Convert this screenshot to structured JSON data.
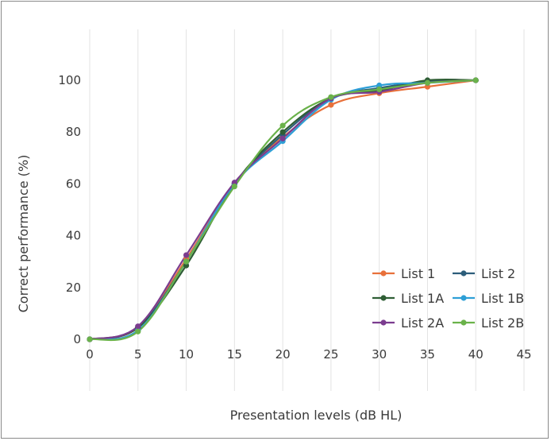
{
  "chart_data": {
    "type": "line",
    "title": "",
    "xlabel": "Presentation levels (dB HL)",
    "ylabel": "Correct performance (%)",
    "xlim": [
      0,
      45
    ],
    "ylim": [
      0,
      100
    ],
    "xticks": [
      0,
      5,
      10,
      15,
      20,
      25,
      30,
      35,
      40,
      45
    ],
    "yticks": [
      0,
      20,
      40,
      60,
      80,
      100
    ],
    "grid": "vertical",
    "legend_position": "bottom-right",
    "x": [
      0,
      5,
      10,
      15,
      20,
      25,
      30,
      35,
      40
    ],
    "series": [
      {
        "name": "List 1",
        "color": "#e8703a",
        "values": [
          0,
          4.5,
          31,
          60,
          78,
          90.5,
          95,
          97.5,
          100
        ]
      },
      {
        "name": "List 2",
        "color": "#2c5d7a",
        "values": [
          0,
          4.5,
          30,
          60,
          79,
          93,
          97,
          99.5,
          100
        ]
      },
      {
        "name": "List 1A",
        "color": "#2f5e35",
        "values": [
          0,
          4.5,
          28.5,
          60,
          80,
          93,
          96,
          100,
          100
        ]
      },
      {
        "name": "List 1B",
        "color": "#2e9fd6",
        "values": [
          0,
          3.5,
          30,
          60,
          76.5,
          92.5,
          98,
          99,
          100
        ]
      },
      {
        "name": "List 2A",
        "color": "#7b3c8f",
        "values": [
          0,
          5,
          32.5,
          60.5,
          77.5,
          93,
          95.5,
          99,
          100
        ]
      },
      {
        "name": "List 2B",
        "color": "#6ab24a",
        "values": [
          0,
          3,
          30,
          59,
          82.5,
          93.5,
          96.5,
          99,
          100
        ]
      }
    ]
  }
}
